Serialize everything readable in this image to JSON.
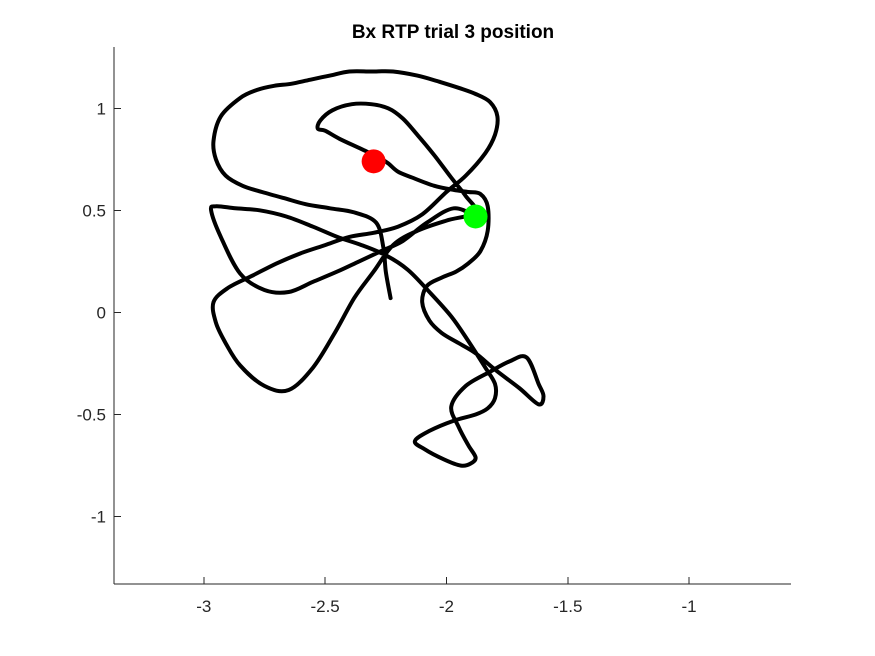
{
  "chart_data": {
    "type": "line",
    "title": "Bx  RTP trial 3 position",
    "xlabel": "",
    "ylabel": "",
    "xlim": [
      -3.37,
      -0.58
    ],
    "ylim": [
      -1.33,
      1.3
    ],
    "xticks": [
      -3,
      -2.5,
      -2,
      -1.5,
      -1
    ],
    "xtick_labels": [
      "-3",
      "-2.5",
      "-2",
      "-1.5",
      "-1"
    ],
    "yticks": [
      -1,
      -0.5,
      0,
      0.5,
      1
    ],
    "ytick_labels": [
      "-1",
      "-0.5",
      "0",
      "0.5",
      "1"
    ],
    "grid": false,
    "axes_box": "left-bottom",
    "series": [
      {
        "color": "#000000",
        "x": [
          -1.88,
          -1.97,
          -2.08,
          -2.18,
          -2.27,
          -2.36,
          -2.45,
          -2.55,
          -2.65,
          -2.75,
          -2.85,
          -2.93,
          -2.97,
          -2.95,
          -2.87,
          -2.77,
          -2.66,
          -2.55,
          -2.45,
          -2.35,
          -2.25,
          -2.16,
          -2.07,
          -1.98,
          -1.91,
          -1.84,
          -1.8,
          -1.8,
          -1.83,
          -1.88,
          -1.97,
          -2.07,
          -2.13,
          -2.09,
          -2.01,
          -1.94,
          -1.9,
          -1.88,
          -1.91,
          -1.95,
          -1.98,
          -1.92,
          -1.82,
          -1.74,
          -1.67,
          -1.62,
          -1.6,
          -1.62,
          -1.7,
          -1.8,
          -1.88,
          -1.95,
          -2.02,
          -2.07,
          -2.1,
          -2.08,
          -2.02,
          -1.96,
          -1.91,
          -1.86,
          -1.83,
          -1.83,
          -1.86,
          -1.91,
          -1.97,
          -2.05,
          -2.14,
          -2.2,
          -2.24,
          -2.28,
          -2.35,
          -2.44,
          -2.5,
          -2.53,
          -2.52,
          -2.47,
          -2.39,
          -2.31,
          -2.24,
          -2.18,
          -2.12,
          -2.05,
          -1.98,
          -1.92,
          -1.88,
          -2.0,
          -2.12,
          -2.22,
          -2.3,
          -2.38,
          -2.46,
          -2.55,
          -2.65,
          -2.75,
          -2.85,
          -2.91,
          -2.95,
          -2.96,
          -2.9,
          -2.8,
          -2.7,
          -2.6,
          -2.5,
          -2.4,
          -2.3,
          -2.2,
          -2.1,
          -2.0,
          -1.92,
          -1.84,
          -1.8,
          -1.79,
          -1.82,
          -1.88,
          -1.95,
          -2.03,
          -2.12,
          -2.22,
          -2.31,
          -2.4,
          -2.48,
          -2.56,
          -2.64,
          -2.71,
          -2.78,
          -2.85,
          -2.93,
          -2.96,
          -2.95,
          -2.91,
          -2.84,
          -2.76,
          -2.67,
          -2.58,
          -2.48,
          -2.38,
          -2.29,
          -2.26,
          -2.25,
          -2.23
        ],
        "y": [
          0.47,
          0.51,
          0.44,
          0.35,
          0.3,
          0.25,
          0.2,
          0.15,
          0.1,
          0.11,
          0.19,
          0.37,
          0.5,
          0.52,
          0.51,
          0.5,
          0.47,
          0.42,
          0.37,
          0.33,
          0.28,
          0.21,
          0.1,
          -0.02,
          -0.14,
          -0.27,
          -0.35,
          -0.42,
          -0.47,
          -0.5,
          -0.53,
          -0.58,
          -0.63,
          -0.67,
          -0.72,
          -0.75,
          -0.74,
          -0.71,
          -0.65,
          -0.56,
          -0.46,
          -0.36,
          -0.29,
          -0.24,
          -0.22,
          -0.35,
          -0.41,
          -0.45,
          -0.37,
          -0.28,
          -0.2,
          -0.15,
          -0.1,
          -0.04,
          0.05,
          0.13,
          0.17,
          0.2,
          0.24,
          0.3,
          0.4,
          0.52,
          0.58,
          0.59,
          0.6,
          0.62,
          0.66,
          0.69,
          0.73,
          0.76,
          0.8,
          0.85,
          0.89,
          0.9,
          0.94,
          0.99,
          1.02,
          1.02,
          1.0,
          0.95,
          0.87,
          0.77,
          0.66,
          0.57,
          0.49,
          0.45,
          0.4,
          0.33,
          0.2,
          0.07,
          -0.1,
          -0.27,
          -0.38,
          -0.36,
          -0.26,
          -0.15,
          -0.05,
          0.05,
          0.12,
          0.18,
          0.24,
          0.29,
          0.33,
          0.37,
          0.39,
          0.42,
          0.48,
          0.59,
          0.67,
          0.78,
          0.87,
          0.96,
          1.03,
          1.07,
          1.1,
          1.13,
          1.16,
          1.18,
          1.18,
          1.18,
          1.16,
          1.14,
          1.12,
          1.11,
          1.09,
          1.05,
          0.96,
          0.84,
          0.75,
          0.67,
          0.62,
          0.59,
          0.56,
          0.53,
          0.51,
          0.49,
          0.44,
          0.32,
          0.2,
          0.07
        ]
      }
    ],
    "markers": [
      {
        "x": -2.3,
        "y": 0.74,
        "color": "#ff0000"
      },
      {
        "x": -1.88,
        "y": 0.47,
        "color": "#00ff00"
      }
    ]
  }
}
